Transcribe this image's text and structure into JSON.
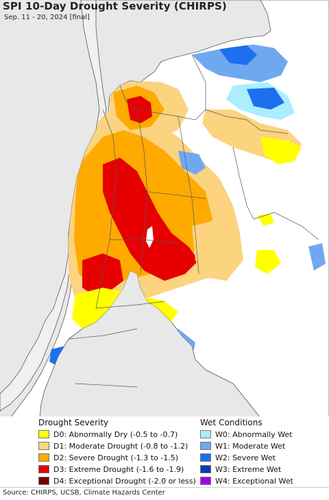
{
  "title": "SPI 10-Day Drought Severity (CHIRPS)",
  "subtitle": "Sep. 11 - 20, 2024 [final]",
  "legend": {
    "drought_heading": "Drought Severity",
    "wet_heading": "Wet Conditions",
    "drought": [
      {
        "label": "D0: Abnormally Dry (-0.5 to -0.7)",
        "color": "#ffff00"
      },
      {
        "label": "D1: Moderate Drought (-0.8 to -1.2)",
        "color": "#fcd37f"
      },
      {
        "label": "D2: Severe Drought (-1.3 to -1.5)",
        "color": "#ffaa00"
      },
      {
        "label": "D3: Extreme Drought (-1.6 to -1.9)",
        "color": "#e60000"
      },
      {
        "label": "D4: Exceptional Drought (-2.0 or less)",
        "color": "#730000"
      }
    ],
    "wet": [
      {
        "label": "W0: Abnormally Wet",
        "color": "#aaeeff"
      },
      {
        "label": "W1: Moderate Wet",
        "color": "#70a8f0"
      },
      {
        "label": "W2: Severe Wet",
        "color": "#1e6ef0"
      },
      {
        "label": "W3: Extreme Wet",
        "color": "#0a3cb4"
      },
      {
        "label": "W4: Exceptional Wet",
        "color": "#a000e6"
      }
    ]
  },
  "source": "Source: CHIRPS, UCSB, Climate Hazards Center",
  "colors": {
    "ocean": "#e8e8e8",
    "land": "#ffffff",
    "border": "#555555"
  }
}
